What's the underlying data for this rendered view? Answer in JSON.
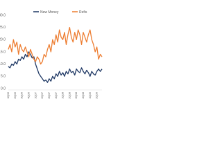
{
  "chart_data": {
    "type": "line",
    "categories": [
      "1Q06",
      null,
      null,
      null,
      "2Q06",
      null,
      null,
      null,
      "3Q06",
      null,
      null,
      null,
      "4Q06",
      null,
      null,
      null,
      "1Q07",
      null,
      null,
      null,
      "2Q07",
      null,
      null,
      null,
      "3Q07",
      null,
      null,
      null,
      "4Q07",
      null,
      null,
      null,
      "1Q08",
      null,
      null,
      null,
      "2Q08",
      null,
      null,
      null,
      "3Q08",
      null,
      null,
      null,
      "4Q08",
      null,
      null,
      null,
      "1Q09",
      null,
      null,
      null,
      "2Q09",
      null,
      null,
      null
    ],
    "series": [
      {
        "name": "New Money",
        "color": "#1f3864",
        "values": [
          9,
          8.5,
          10,
          9.5,
          11,
          10,
          12,
          11.5,
          13,
          12,
          14,
          13,
          15,
          14,
          12.5,
          13,
          10,
          8,
          6,
          5,
          4,
          3,
          3.5,
          2.5,
          4,
          3,
          5,
          4,
          6,
          5,
          7,
          5.5,
          6.5,
          5,
          7,
          6,
          8,
          6.5,
          7,
          5.5,
          8,
          7,
          6.5,
          8.5,
          7,
          6,
          7.5,
          6.5,
          5,
          7,
          6,
          5.5,
          7,
          8,
          7,
          8
        ]
      },
      {
        "name": "Refis",
        "color": "#ed7d31",
        "values": [
          16,
          18,
          15,
          20,
          17,
          19,
          14,
          18,
          16,
          15,
          17,
          15,
          13,
          16,
          14,
          12,
          11,
          13,
          12,
          10,
          11,
          14,
          13,
          16,
          18,
          15,
          20,
          18,
          22,
          19,
          24,
          21,
          20,
          23,
          18,
          22,
          25,
          21,
          19,
          23,
          20,
          24,
          22,
          18,
          23,
          21,
          19,
          22,
          24,
          20,
          18,
          15,
          17,
          12,
          14,
          13
        ]
      }
    ],
    "ylim": [
      0,
      30
    ],
    "yticks": [
      {
        "value": 0,
        "label": "0.0"
      },
      {
        "value": 5,
        "label": "5.0"
      },
      {
        "value": 10,
        "label": "10.0"
      },
      {
        "value": 15,
        "label": "15.0"
      },
      {
        "value": 20,
        "label": "20.0"
      },
      {
        "value": 25,
        "label": "25.0"
      },
      {
        "value": 30,
        "label": "30.0"
      }
    ],
    "grid": false
  }
}
